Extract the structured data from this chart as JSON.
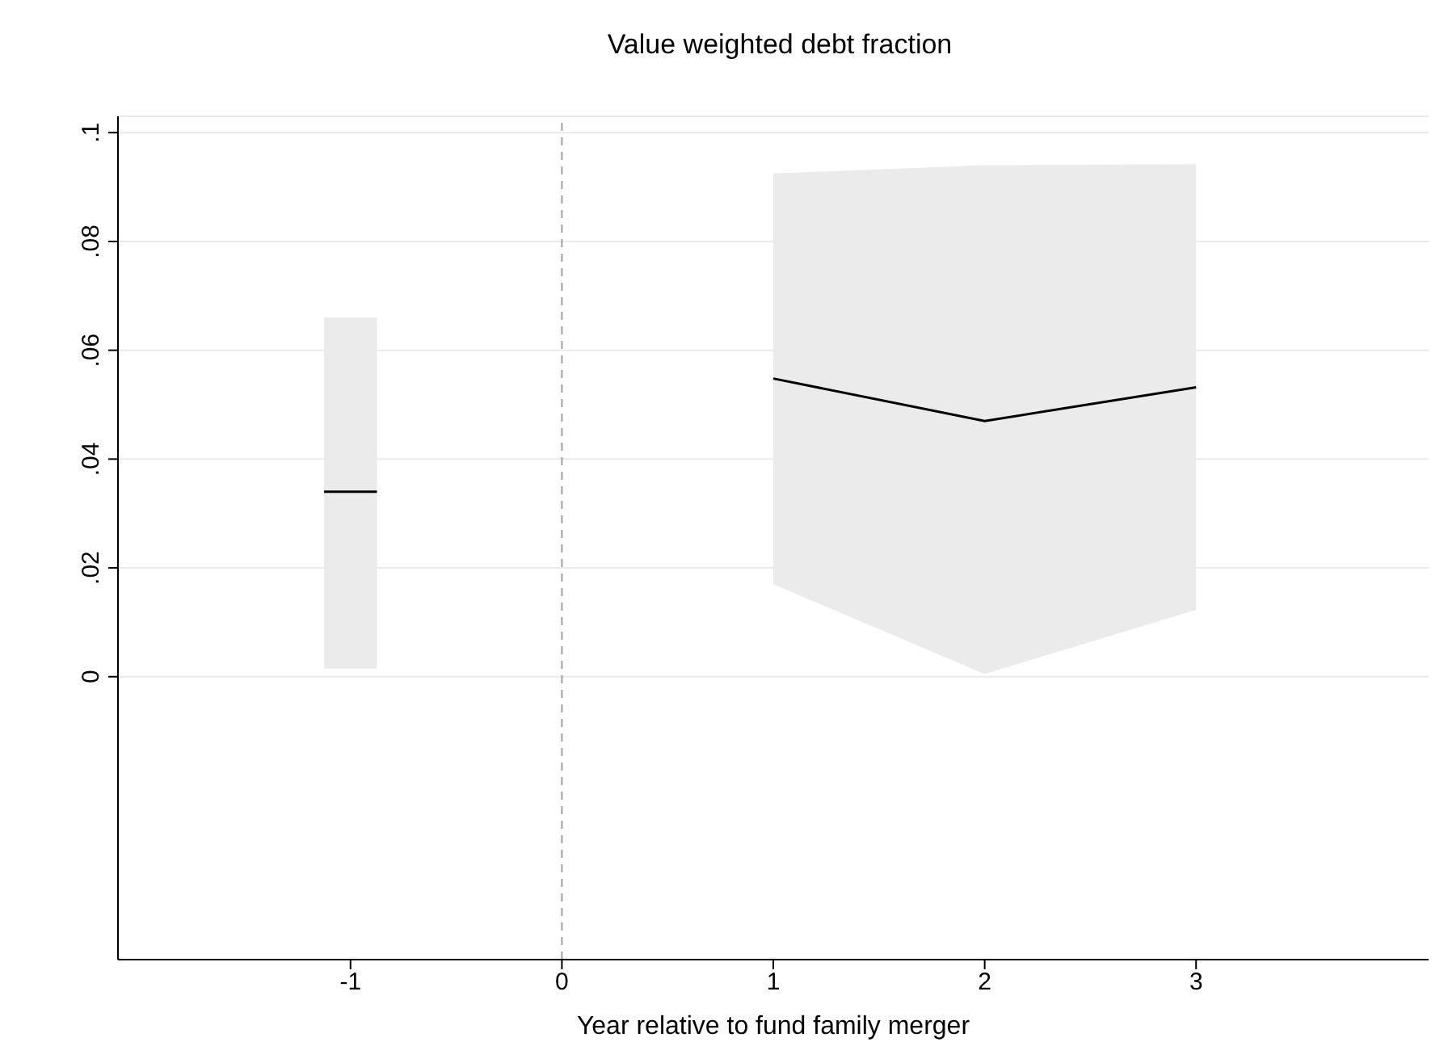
{
  "chart_data": {
    "type": "line",
    "title": "Value weighted debt fraction",
    "xlabel": "Year relative to fund family merger",
    "xlim": [
      -2.1,
      4.1
    ],
    "xticks": [
      -1,
      0,
      1,
      2,
      3
    ],
    "ylim": [
      -0.052,
      0.103
    ],
    "yticks": [
      0,
      {
        "value": 0.02,
        "label": ".02"
      },
      {
        "value": 0.04,
        "label": ".04"
      },
      {
        "value": 0.06,
        "label": ".06"
      },
      {
        "value": 0.08,
        "label": ".08"
      },
      {
        "value": 0.1,
        "label": ".1"
      }
    ],
    "series": [
      {
        "color": "#000000",
        "x": [
          -1.125,
          -0.875
        ],
        "values": [
          0.034,
          0.034
        ],
        "lower": [
          0.0015,
          0.0015
        ],
        "upper": [
          0.066,
          0.066
        ]
      },
      {
        "color": "#000000",
        "x": [
          1,
          2,
          3
        ],
        "values": [
          0.0548,
          0.047,
          0.0532
        ],
        "lower": [
          0.017,
          0.0005,
          0.0123
        ],
        "upper": [
          0.0925,
          0.094,
          0.0942
        ]
      }
    ],
    "ref_lines": [
      {
        "axis": "x",
        "value": 0,
        "color": "#a0a0a0",
        "line_style": "dashed"
      }
    ],
    "grid": "y",
    "legend": false,
    "marker": "none"
  }
}
